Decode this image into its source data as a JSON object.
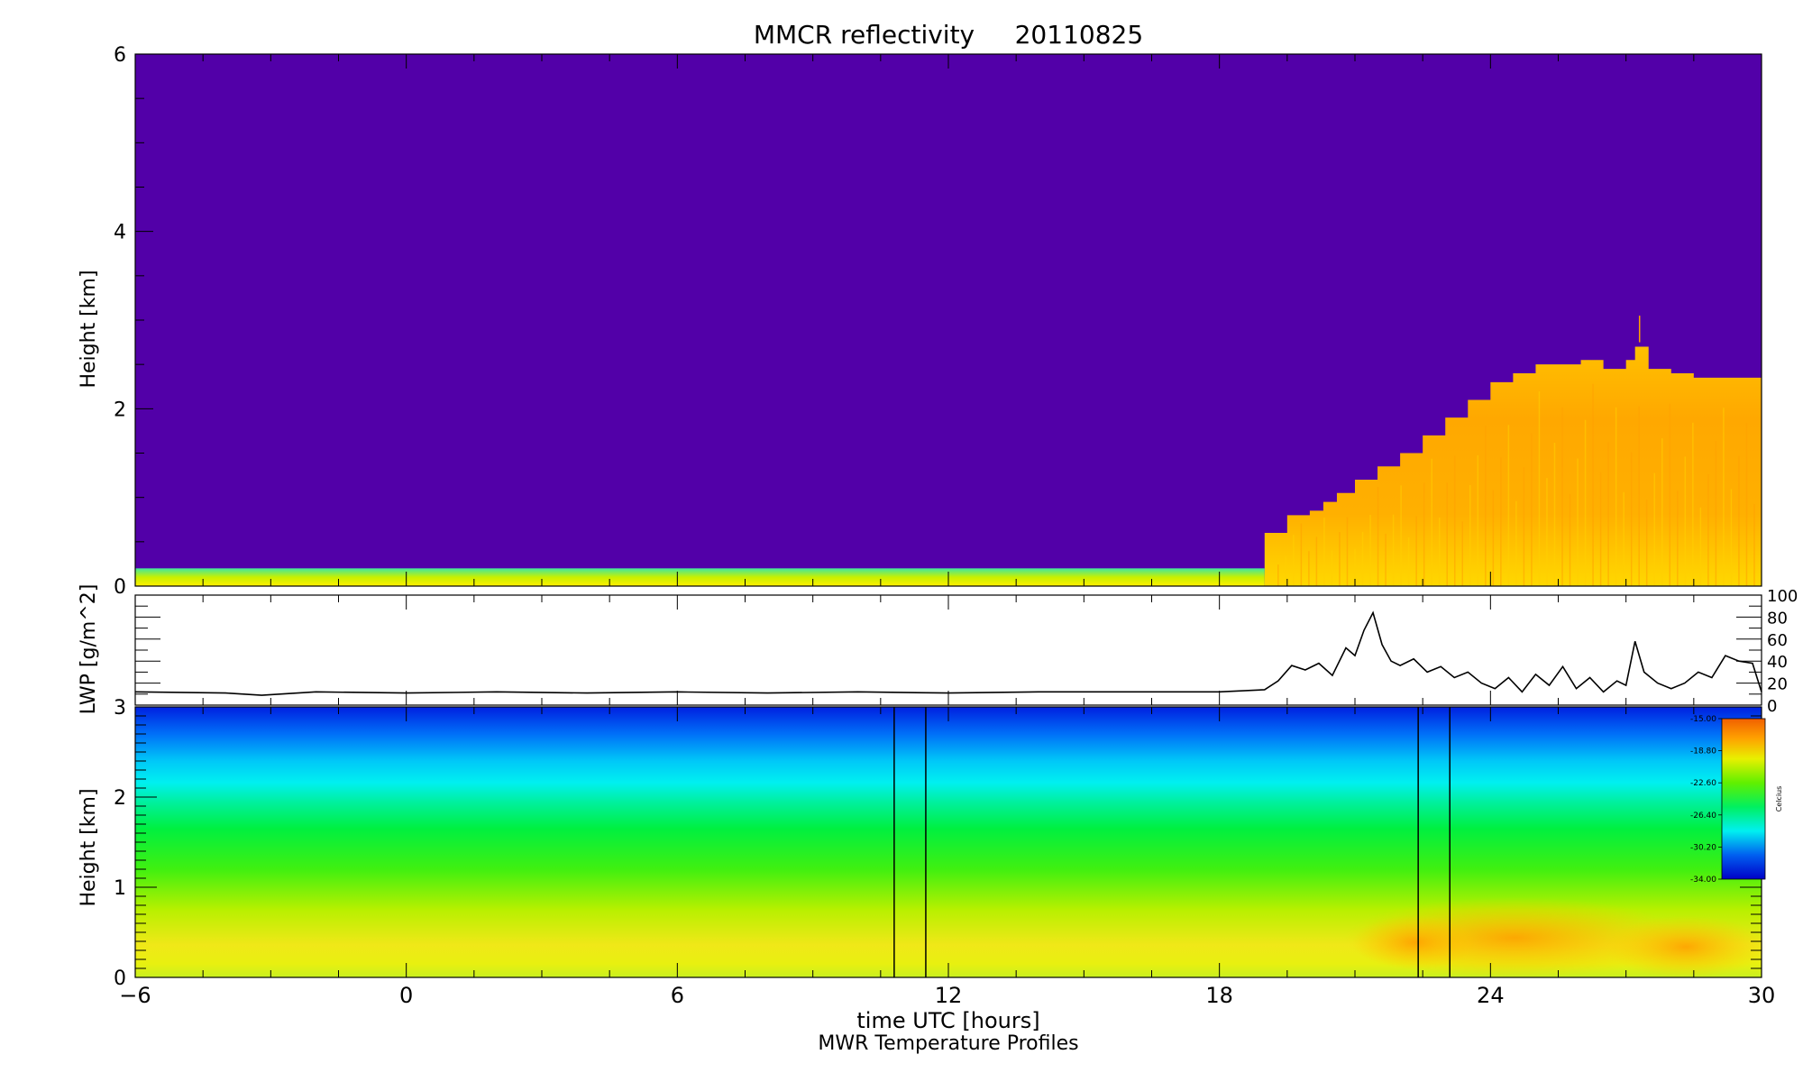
{
  "title": "MMCR reflectivity     20110825",
  "xlabel": "time UTC [hours]",
  "xlabel2": "MWR Temperature Profiles",
  "colors": {
    "background_echo": "#5200A8",
    "cloud_orange": "#FFA000",
    "cloud_yellow": "#FFD000",
    "surface_green": "#C0F000",
    "lwp_line": "#000000"
  },
  "chart_data": [
    {
      "id": "reflectivity",
      "type": "heatmap",
      "title": "MMCR reflectivity     20110825",
      "ylabel": "Height [km]",
      "xlim": [
        -6,
        30
      ],
      "ylim": [
        0,
        6
      ],
      "x_ticks": [
        "-6",
        "0",
        "6",
        "12",
        "18",
        "24",
        "30"
      ],
      "y_ticks": [
        "0",
        "2",
        "4",
        "6"
      ],
      "surface_layer_top_km": 0.2,
      "cloud_onset_hour": 19.0,
      "cloud_top_km": {
        "x": [
          19.0,
          19.4,
          19.5,
          20.0,
          20.3,
          20.6,
          21.0,
          21.5,
          22.0,
          22.5,
          23.0,
          23.5,
          24.0,
          24.5,
          25.0,
          25.5,
          26.0,
          26.5,
          27.0,
          27.2,
          27.5,
          28.0,
          28.5,
          29.0,
          29.5,
          30.0
        ],
        "y": [
          0.6,
          0.6,
          0.8,
          0.85,
          0.95,
          1.05,
          1.2,
          1.35,
          1.5,
          1.7,
          1.9,
          2.1,
          2.3,
          2.4,
          2.5,
          2.5,
          2.55,
          2.45,
          2.55,
          2.7,
          2.45,
          2.4,
          2.35,
          2.35,
          2.35,
          2.35
        ]
      }
    },
    {
      "id": "lwp",
      "type": "line",
      "ylabel": "LWP [g/m^2]",
      "xlim": [
        -6,
        30
      ],
      "ylim": [
        0,
        100
      ],
      "y_ticks": [
        "0",
        "20",
        "40",
        "60",
        "80",
        "100"
      ],
      "series": [
        {
          "x": [
            -6,
            -4,
            -3.2,
            -2,
            0,
            2,
            4,
            6,
            8,
            10,
            12,
            14,
            16,
            18,
            19.0,
            19.3,
            19.6,
            19.9,
            20.2,
            20.5,
            20.8,
            21.0,
            21.2,
            21.4,
            21.6,
            21.8,
            22.0,
            22.3,
            22.6,
            22.9,
            23.2,
            23.5,
            23.8,
            24.1,
            24.4,
            24.7,
            25.0,
            25.3,
            25.6,
            25.9,
            26.2,
            26.5,
            26.8,
            27.0,
            27.2,
            27.4,
            27.7,
            28.0,
            28.3,
            28.6,
            28.9,
            29.2,
            29.5,
            29.8,
            30.0
          ],
          "y": [
            12,
            11,
            9,
            12,
            11,
            12,
            11,
            12,
            11,
            12,
            11,
            12,
            12,
            12,
            14,
            22,
            36,
            32,
            38,
            27,
            52,
            45,
            68,
            84,
            55,
            40,
            36,
            42,
            30,
            35,
            25,
            30,
            20,
            15,
            25,
            12,
            28,
            18,
            35,
            15,
            25,
            12,
            22,
            18,
            58,
            30,
            20,
            15,
            20,
            30,
            25,
            45,
            40,
            38,
            12
          ]
        }
      ]
    },
    {
      "id": "temperature",
      "type": "heatmap",
      "ylabel": "Height [km]",
      "xlim": [
        -6,
        30
      ],
      "ylim": [
        0,
        3
      ],
      "x_ticks": [
        "-6",
        "0",
        "6",
        "12",
        "18",
        "24",
        "30"
      ],
      "y_ticks": [
        "0",
        "1",
        "2",
        "3"
      ],
      "gap_bars_hours": [
        [
          10.8,
          11.5
        ],
        [
          22.4,
          23.1
        ]
      ],
      "colorbar": {
        "label": "Celcius",
        "ticks": [
          "-15.00",
          "-18.80",
          "-22.60",
          "-26.40",
          "-30.20",
          "-34.00"
        ],
        "range": [
          -34.0,
          -15.0
        ]
      }
    }
  ]
}
